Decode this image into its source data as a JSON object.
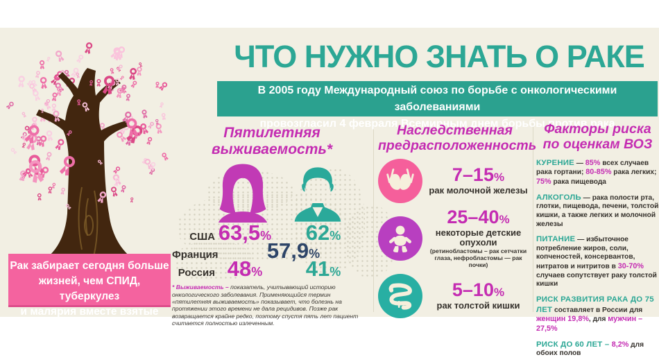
{
  "colors": {
    "teal": "#2ca795",
    "magenta": "#c42cb2",
    "navy": "#2e4568",
    "pink_box": "#f4639f",
    "circle_pink": "#f55f9b",
    "circle_purple": "#b83fc0",
    "circle_teal": "#28afa3",
    "background_cream": "#f2efe3",
    "ribbon_pink": "#ee6fa8"
  },
  "header": {
    "title": "ЧТО НУЖНО ЗНАТЬ О РАКЕ",
    "banner_lines": [
      "В 2005 году Международный союз по борьбе с онкологическими заболеваниями",
      "провозгласил 4 февраля Всемирным днем борьбы против рака"
    ]
  },
  "fact_box": {
    "lines": [
      "Рак забирает сегодня больше",
      "жизней, чем СПИД, туберкулез",
      "и малярия вместе взятые"
    ]
  },
  "survival": {
    "heading_lines": [
      "Пятилетняя",
      "выживаемость*"
    ],
    "percent_sign": "%",
    "rows": [
      {
        "country": "США",
        "female": "63,5",
        "male": "62"
      },
      {
        "country": "Франция",
        "combined": "57,9"
      },
      {
        "country": "Россия",
        "female": "48",
        "male": "41"
      }
    ],
    "footnote_lead": "* Выживаемость –",
    "footnote_text": " показатель, учитывающий историю онкологического заболевания. Применяющийся термин «пятилетняя выживаемость» показывает, что болезнь на протяжении этого времени не дала рецидивов. Позже рак возвращается крайне редко, поэтому спустя пять лет пациент считается полностью излеченным."
  },
  "heredity": {
    "heading_lines": [
      "Наследственная",
      "предрасположенность"
    ],
    "percent_sign": "%",
    "items": [
      {
        "icon": "bra-icon",
        "value": "7–15",
        "label": "рак молочной железы",
        "note": ""
      },
      {
        "icon": "baby-icon",
        "value": "25–40",
        "label": "некоторые детские опухоли",
        "note": "(ретинобластомы – рак сетчатки глаза, нефробластомы — рак почки)"
      },
      {
        "icon": "intestine-icon",
        "value": "5–10",
        "label": "рак толстой кишки",
        "note": ""
      }
    ]
  },
  "risk": {
    "heading_lines": [
      "Факторы риска",
      "по оценкам ВОЗ"
    ],
    "paragraphs": [
      {
        "segments": [
          {
            "t": "КУРЕНИЕ",
            "c": "teal"
          },
          {
            "t": " — ",
            "c": "dark"
          },
          {
            "t": "85%",
            "c": "magenta"
          },
          {
            "t": " всех случаев рака гортани; ",
            "c": "dark"
          },
          {
            "t": "80-85%",
            "c": "magenta"
          },
          {
            "t": " рака легких; ",
            "c": "dark"
          },
          {
            "t": "75%",
            "c": "magenta"
          },
          {
            "t": " рака пищевода",
            "c": "dark"
          }
        ]
      },
      {
        "segments": [
          {
            "t": "АЛКОГОЛЬ",
            "c": "teal"
          },
          {
            "t": " — рака полости рта, глотки, пищевода, печени, толстой кишки, а также легких и молочной железы",
            "c": "dark"
          }
        ]
      },
      {
        "segments": [
          {
            "t": "ПИТАНИЕ",
            "c": "teal"
          },
          {
            "t": " — избыточное потребление жиров, соли, копченостей, консервантов, нитратов и нитритов в ",
            "c": "dark"
          },
          {
            "t": "30-70%",
            "c": "magenta"
          },
          {
            "t": " случаев сопутствует раку толстой кишки",
            "c": "dark"
          }
        ]
      },
      {
        "segments": [
          {
            "t": "РИСК РАЗВИТИЯ РАКА ДО 75 ЛЕТ",
            "c": "teal"
          },
          {
            "t": " составляет в России для ",
            "c": "dark"
          },
          {
            "t": "женщин 19,8%",
            "c": "magenta"
          },
          {
            "t": ", для ",
            "c": "dark"
          },
          {
            "t": "мужчин – 27,5%",
            "c": "magenta"
          }
        ]
      },
      {
        "segments": [
          {
            "t": "РИСК ДО 60 ЛЕТ –  ",
            "c": "teal"
          },
          {
            "t": "8,2%",
            "c": "magenta"
          },
          {
            "t": " для обоих полов",
            "c": "dark"
          }
        ]
      }
    ]
  }
}
